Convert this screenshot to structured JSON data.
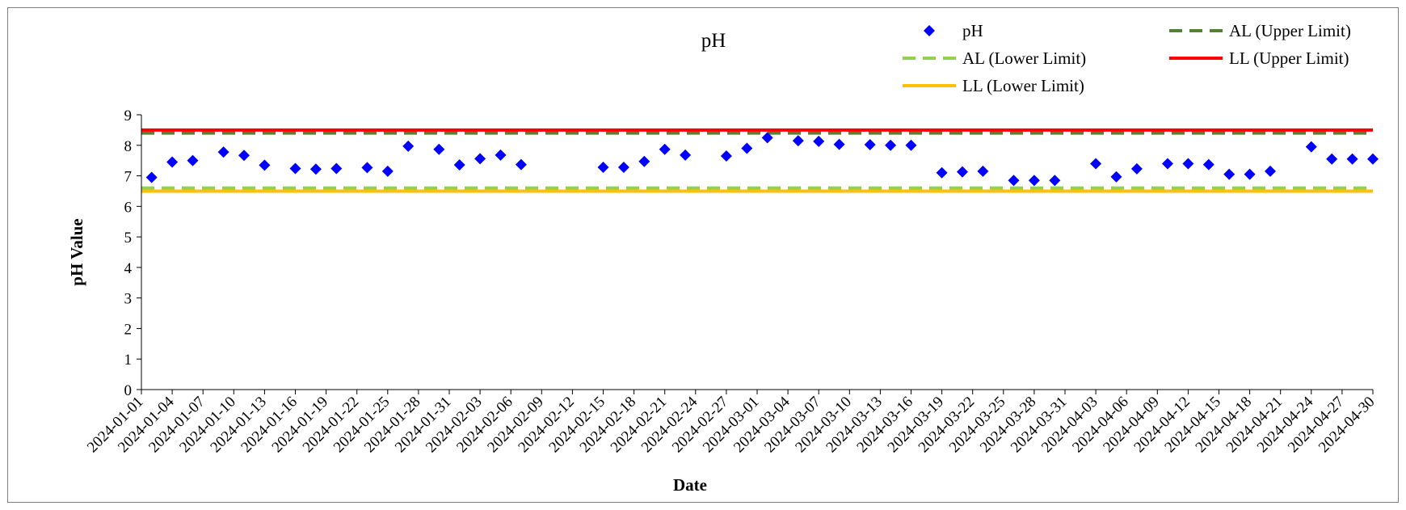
{
  "chart_data": {
    "type": "scatter",
    "title": "pH",
    "xlabel": "Date",
    "ylabel": "pH Value",
    "x_range": [
      "2024-01-01",
      "2024-04-30"
    ],
    "ylim": [
      0,
      9
    ],
    "y_ticks": [
      "0",
      "1",
      "2",
      "3",
      "4",
      "5",
      "6",
      "7",
      "8",
      "9"
    ],
    "x_ticks": [
      "2024-01-01",
      "2024-01-04",
      "2024-01-07",
      "2024-01-10",
      "2024-01-13",
      "2024-01-16",
      "2024-01-19",
      "2024-01-22",
      "2024-01-25",
      "2024-01-28",
      "2024-01-31",
      "2024-02-03",
      "2024-02-06",
      "2024-02-09",
      "2024-02-12",
      "2024-02-15",
      "2024-02-18",
      "2024-02-21",
      "2024-02-24",
      "2024-02-27",
      "2024-03-01",
      "2024-03-04",
      "2024-03-07",
      "2024-03-10",
      "2024-03-13",
      "2024-03-16",
      "2024-03-19",
      "2024-03-22",
      "2024-03-25",
      "2024-03-28",
      "2024-03-31",
      "2024-04-03",
      "2024-04-06",
      "2024-04-09",
      "2024-04-12",
      "2024-04-15",
      "2024-04-18",
      "2024-04-21",
      "2024-04-24",
      "2024-04-27",
      "2024-04-30"
    ],
    "grid": false,
    "legend_position": "top-right",
    "series": [
      {
        "name": "pH",
        "marker": "diamond",
        "color": "#0000FF",
        "points": [
          {
            "x": "2024-01-02",
            "y": 6.95
          },
          {
            "x": "2024-01-04",
            "y": 7.45
          },
          {
            "x": "2024-01-06",
            "y": 7.5
          },
          {
            "x": "2024-01-09",
            "y": 7.78
          },
          {
            "x": "2024-01-11",
            "y": 7.67
          },
          {
            "x": "2024-01-13",
            "y": 7.35
          },
          {
            "x": "2024-01-16",
            "y": 7.24
          },
          {
            "x": "2024-01-18",
            "y": 7.22
          },
          {
            "x": "2024-01-20",
            "y": 7.24
          },
          {
            "x": "2024-01-23",
            "y": 7.27
          },
          {
            "x": "2024-01-25",
            "y": 7.15
          },
          {
            "x": "2024-01-27",
            "y": 7.97
          },
          {
            "x": "2024-01-30",
            "y": 7.87
          },
          {
            "x": "2024-02-01",
            "y": 7.36
          },
          {
            "x": "2024-02-03",
            "y": 7.56
          },
          {
            "x": "2024-02-05",
            "y": 7.68
          },
          {
            "x": "2024-02-07",
            "y": 7.37
          },
          {
            "x": "2024-02-15",
            "y": 7.28
          },
          {
            "x": "2024-02-17",
            "y": 7.28
          },
          {
            "x": "2024-02-19",
            "y": 7.47
          },
          {
            "x": "2024-02-21",
            "y": 7.87
          },
          {
            "x": "2024-02-23",
            "y": 7.68
          },
          {
            "x": "2024-02-27",
            "y": 7.65
          },
          {
            "x": "2024-02-29",
            "y": 7.9
          },
          {
            "x": "2024-03-02",
            "y": 8.25
          },
          {
            "x": "2024-03-05",
            "y": 8.15
          },
          {
            "x": "2024-03-07",
            "y": 8.13
          },
          {
            "x": "2024-03-09",
            "y": 8.03
          },
          {
            "x": "2024-03-12",
            "y": 8.02
          },
          {
            "x": "2024-03-14",
            "y": 8.0
          },
          {
            "x": "2024-03-16",
            "y": 8.0
          },
          {
            "x": "2024-03-19",
            "y": 7.1
          },
          {
            "x": "2024-03-21",
            "y": 7.13
          },
          {
            "x": "2024-03-23",
            "y": 7.15
          },
          {
            "x": "2024-03-26",
            "y": 6.85
          },
          {
            "x": "2024-03-28",
            "y": 6.85
          },
          {
            "x": "2024-03-30",
            "y": 6.85
          },
          {
            "x": "2024-04-03",
            "y": 7.4
          },
          {
            "x": "2024-04-05",
            "y": 6.97
          },
          {
            "x": "2024-04-07",
            "y": 7.23
          },
          {
            "x": "2024-04-10",
            "y": 7.4
          },
          {
            "x": "2024-04-12",
            "y": 7.4
          },
          {
            "x": "2024-04-14",
            "y": 7.37
          },
          {
            "x": "2024-04-16",
            "y": 7.05
          },
          {
            "x": "2024-04-18",
            "y": 7.05
          },
          {
            "x": "2024-04-20",
            "y": 7.15
          },
          {
            "x": "2024-04-24",
            "y": 7.95
          },
          {
            "x": "2024-04-26",
            "y": 7.55
          },
          {
            "x": "2024-04-28",
            "y": 7.55
          },
          {
            "x": "2024-04-30",
            "y": 7.55
          }
        ]
      },
      {
        "name": "AL (Upper Limit)",
        "type": "hline",
        "y": 8.4,
        "style": "dashed",
        "color": "#548235"
      },
      {
        "name": "AL (Lower Limit)",
        "type": "hline",
        "y": 6.6,
        "style": "dashed",
        "color": "#92D050"
      },
      {
        "name": "LL (Upper Limit)",
        "type": "hline",
        "y": 8.5,
        "style": "solid",
        "color": "#FF0000"
      },
      {
        "name": "LL (Lower Limit)",
        "type": "hline",
        "y": 6.5,
        "style": "solid",
        "color": "#FFC000"
      }
    ]
  }
}
